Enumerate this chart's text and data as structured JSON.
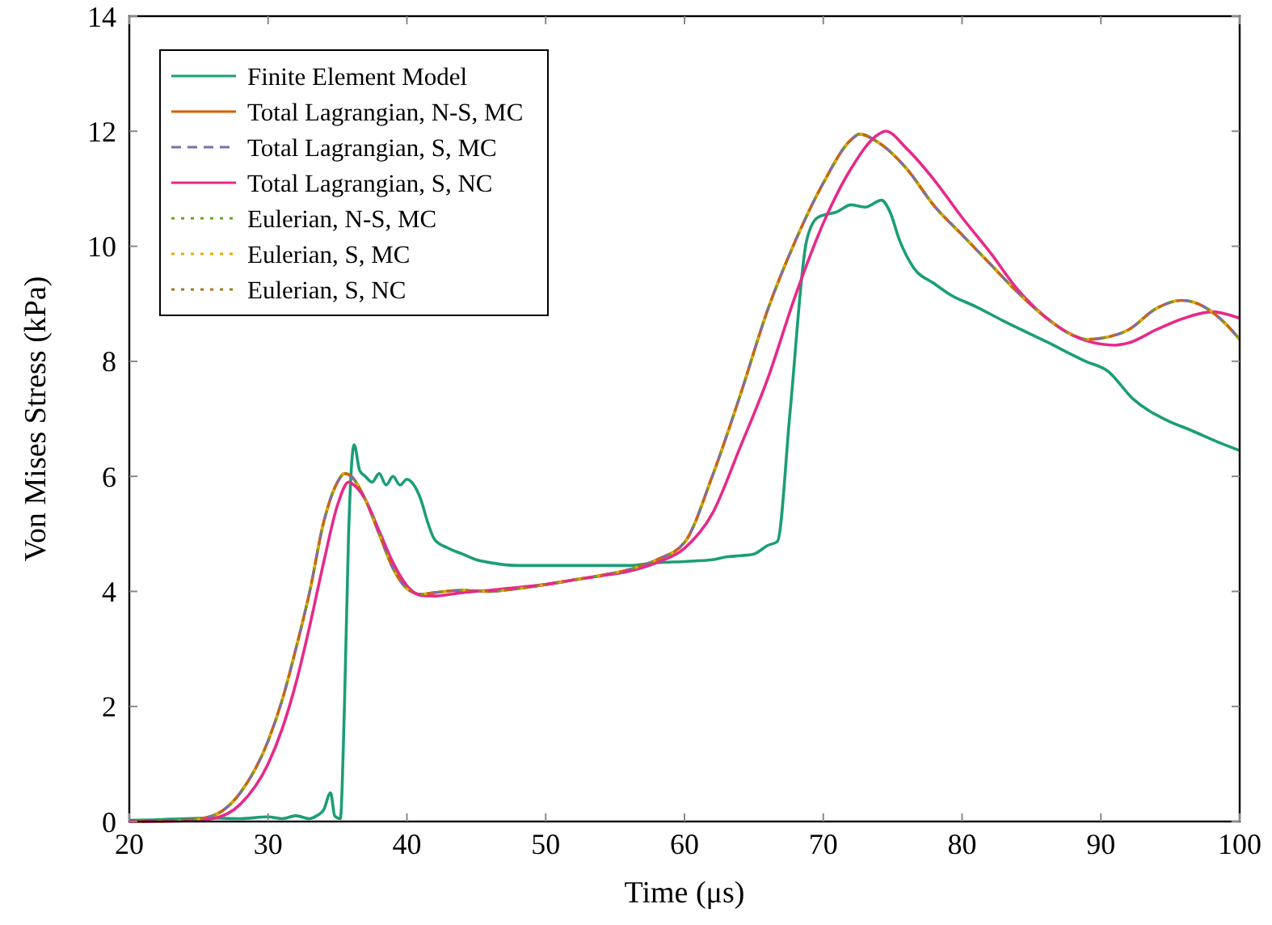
{
  "chart_data": {
    "type": "line",
    "xlabel": "Time (μs)",
    "ylabel": "Von Mises Stress (kPa)",
    "xlim": [
      20,
      100
    ],
    "ylim": [
      0,
      14
    ],
    "xticks": [
      20,
      30,
      40,
      50,
      60,
      70,
      80,
      90,
      100
    ],
    "yticks": [
      0,
      2,
      4,
      6,
      8,
      10,
      12,
      14
    ],
    "grid": false,
    "legend": "top left",
    "series": [
      {
        "name": "Finite Element Model",
        "color": "#1b9e77",
        "line_style": "solid",
        "x": [
          20,
          22,
          24,
          26,
          28,
          30,
          31,
          32,
          33,
          33.5,
          34,
          34.5,
          34.8,
          35.2,
          35.5,
          35.8,
          36.2,
          36.6,
          37,
          37.5,
          38,
          38.5,
          39,
          39.5,
          40,
          40.5,
          41,
          41.5,
          42,
          43,
          44,
          45,
          46,
          48,
          50,
          52,
          54,
          56,
          58,
          60,
          62,
          63,
          64,
          65,
          66,
          66.7,
          67.6,
          68.8,
          69.6,
          71,
          72,
          73,
          74.2,
          74.8,
          75.5,
          76.5,
          78,
          79.2,
          81,
          83,
          86,
          88.9,
          90.5,
          92.3,
          94.7,
          96.5,
          98.6,
          100
        ],
        "values": [
          0.02,
          0.03,
          0.05,
          0.06,
          0.05,
          0.08,
          0.05,
          0.1,
          0.05,
          0.1,
          0.2,
          0.5,
          0.1,
          0.05,
          2,
          5,
          6.55,
          6.1,
          6,
          5.9,
          6.05,
          5.85,
          6,
          5.85,
          5.95,
          5.85,
          5.6,
          5.2,
          4.9,
          4.75,
          4.65,
          4.55,
          4.5,
          4.45,
          4.45,
          4.45,
          4.45,
          4.45,
          4.5,
          4.52,
          4.55,
          4.6,
          4.62,
          4.65,
          4.8,
          4.87,
          7.1,
          10.1,
          10.5,
          10.6,
          10.72,
          10.68,
          10.8,
          10.6,
          10.1,
          9.63,
          9.35,
          9.15,
          8.95,
          8.7,
          8.35,
          8,
          7.83,
          7.35,
          6.98,
          6.8,
          6.58,
          6.45
        ]
      },
      {
        "name": "Total Lagrangian, N-S, MC",
        "color": "#d95f02",
        "line_style": "solid",
        "x": [
          20,
          24,
          26,
          28,
          30,
          31,
          32,
          33,
          34,
          35,
          35.5,
          36,
          37,
          38,
          39,
          40,
          41,
          42,
          44,
          46,
          48,
          50,
          52,
          54,
          56,
          58,
          60,
          62,
          64,
          66,
          68,
          70,
          72,
          72.6,
          74,
          76,
          78,
          80,
          82,
          84,
          86,
          88,
          89,
          90,
          92,
          94,
          95.8,
          97,
          98,
          99,
          100
        ],
        "values": [
          0,
          0.02,
          0.1,
          0.5,
          1.4,
          2.1,
          3,
          4,
          5.2,
          5.9,
          6.05,
          6,
          5.6,
          5,
          4.4,
          4.05,
          3.95,
          3.98,
          4.02,
          4,
          4.05,
          4.12,
          4.2,
          4.28,
          4.38,
          4.55,
          4.85,
          6,
          7.4,
          8.9,
          10.1,
          11.1,
          11.85,
          11.95,
          11.8,
          11.35,
          10.7,
          10.2,
          9.7,
          9.2,
          8.77,
          8.45,
          8.38,
          8.4,
          8.55,
          8.92,
          9.06,
          9,
          8.86,
          8.65,
          8.38
        ]
      },
      {
        "name": "Total Lagrangian, S, MC",
        "color": "#7570b3",
        "line_style": "dashed",
        "x": [
          20,
          24,
          26,
          28,
          30,
          31,
          32,
          33,
          34,
          35,
          35.5,
          36,
          37,
          38,
          39,
          40,
          41,
          42,
          44,
          46,
          48,
          50,
          52,
          54,
          56,
          58,
          60,
          62,
          64,
          66,
          68,
          70,
          72,
          72.6,
          74,
          76,
          78,
          80,
          82,
          84,
          86,
          88,
          89,
          90,
          92,
          94,
          95.8,
          97,
          98,
          99,
          100
        ],
        "values": [
          0,
          0.02,
          0.1,
          0.5,
          1.4,
          2.1,
          3,
          4,
          5.2,
          5.9,
          6.05,
          6,
          5.6,
          5,
          4.4,
          4.05,
          3.95,
          3.98,
          4.02,
          4,
          4.05,
          4.12,
          4.2,
          4.28,
          4.38,
          4.55,
          4.85,
          6,
          7.4,
          8.9,
          10.1,
          11.1,
          11.85,
          11.95,
          11.8,
          11.35,
          10.7,
          10.2,
          9.7,
          9.2,
          8.77,
          8.45,
          8.38,
          8.4,
          8.55,
          8.92,
          9.06,
          9,
          8.86,
          8.65,
          8.38
        ]
      },
      {
        "name": "Total Lagrangian, S, NC",
        "color": "#e7298a",
        "line_style": "solid",
        "x": [
          20,
          24,
          26,
          28,
          30,
          31,
          32,
          33,
          34,
          35,
          35.8,
          36,
          37,
          38,
          39,
          40,
          41,
          42,
          44,
          46,
          48,
          50,
          52,
          54,
          56,
          58,
          60,
          62,
          64,
          66,
          68,
          70,
          72,
          74,
          74.5,
          76,
          78,
          80,
          82,
          84,
          86,
          88,
          90,
          91,
          92,
          94,
          96,
          98,
          100
        ],
        "values": [
          0,
          0.01,
          0.05,
          0.3,
          1,
          1.6,
          2.4,
          3.4,
          4.5,
          5.5,
          5.9,
          5.88,
          5.6,
          5.05,
          4.5,
          4.1,
          3.93,
          3.92,
          3.98,
          4.02,
          4.07,
          4.12,
          4.2,
          4.27,
          4.35,
          4.5,
          4.75,
          5.35,
          6.5,
          7.7,
          9.15,
          10.4,
          11.35,
          11.95,
          12,
          11.7,
          11.15,
          10.5,
          9.9,
          9.25,
          8.77,
          8.45,
          8.3,
          8.28,
          8.32,
          8.55,
          8.75,
          8.86,
          8.75
        ]
      },
      {
        "name": "Eulerian, N-S, MC",
        "color": "#66a61e",
        "line_style": "dotted",
        "x": [
          20,
          24,
          26,
          28,
          30,
          31,
          32,
          33,
          34,
          35,
          35.5,
          36,
          37,
          38,
          39,
          40,
          41,
          42,
          44,
          46,
          48,
          50,
          52,
          54,
          56,
          58,
          60,
          62,
          64,
          66,
          68,
          70,
          72,
          72.6,
          74,
          76,
          78,
          80,
          82,
          84,
          86,
          88,
          89,
          90,
          92,
          94,
          95.8,
          97,
          98,
          99,
          100
        ],
        "values": [
          0,
          0.02,
          0.1,
          0.5,
          1.4,
          2.1,
          3,
          4,
          5.2,
          5.9,
          6.05,
          6,
          5.6,
          5,
          4.4,
          4.05,
          3.95,
          3.98,
          4.02,
          4,
          4.05,
          4.12,
          4.2,
          4.28,
          4.38,
          4.55,
          4.85,
          6,
          7.4,
          8.9,
          10.1,
          11.1,
          11.85,
          11.95,
          11.8,
          11.35,
          10.7,
          10.2,
          9.7,
          9.2,
          8.77,
          8.45,
          8.38,
          8.4,
          8.55,
          8.92,
          9.06,
          9,
          8.86,
          8.65,
          8.38
        ]
      },
      {
        "name": "Eulerian, S, MC",
        "color": "#e6ab02",
        "line_style": "dotted",
        "x": [
          20,
          24,
          26,
          28,
          30,
          31,
          32,
          33,
          34,
          35,
          35.5,
          36,
          37,
          38,
          39,
          40,
          41,
          42,
          44,
          46,
          48,
          50,
          52,
          54,
          56,
          58,
          60,
          62,
          64,
          66,
          68,
          70,
          72,
          72.6,
          74,
          76,
          78,
          80,
          82,
          84,
          86,
          88,
          89,
          90,
          92,
          94,
          95.8,
          97,
          98,
          99,
          100
        ],
        "values": [
          0,
          0.02,
          0.1,
          0.5,
          1.4,
          2.1,
          3,
          4,
          5.2,
          5.9,
          6.05,
          6,
          5.6,
          5,
          4.4,
          4.05,
          3.95,
          3.98,
          4.02,
          4,
          4.05,
          4.12,
          4.2,
          4.28,
          4.38,
          4.55,
          4.85,
          6,
          7.4,
          8.9,
          10.1,
          11.1,
          11.85,
          11.95,
          11.8,
          11.35,
          10.7,
          10.2,
          9.7,
          9.2,
          8.77,
          8.45,
          8.38,
          8.4,
          8.55,
          8.92,
          9.06,
          9,
          8.86,
          8.65,
          8.38
        ]
      },
      {
        "name": "Eulerian, S, NC",
        "color": "#a6761d",
        "line_style": "dotted",
        "x": [
          20,
          24,
          26,
          28,
          30,
          31,
          32,
          33,
          34,
          35,
          35.5,
          36,
          37,
          38,
          39,
          40,
          41,
          42,
          44,
          46,
          48,
          50,
          52,
          54,
          56,
          58,
          60,
          62,
          64,
          66,
          68,
          70,
          72,
          72.6,
          74,
          76,
          78,
          80,
          82,
          84,
          86,
          88,
          89,
          90,
          92,
          94,
          95.8,
          97,
          98,
          99,
          100
        ],
        "values": [
          0,
          0.02,
          0.1,
          0.5,
          1.4,
          2.1,
          3,
          4,
          5.2,
          5.9,
          6.05,
          6,
          5.6,
          5,
          4.4,
          4.05,
          3.95,
          3.98,
          4.02,
          4,
          4.05,
          4.12,
          4.2,
          4.28,
          4.38,
          4.55,
          4.85,
          6,
          7.4,
          8.9,
          10.1,
          11.1,
          11.85,
          11.95,
          11.8,
          11.35,
          10.7,
          10.2,
          9.7,
          9.2,
          8.77,
          8.45,
          8.38,
          8.4,
          8.55,
          8.92,
          9.06,
          9,
          8.86,
          8.65,
          8.38
        ]
      }
    ]
  }
}
